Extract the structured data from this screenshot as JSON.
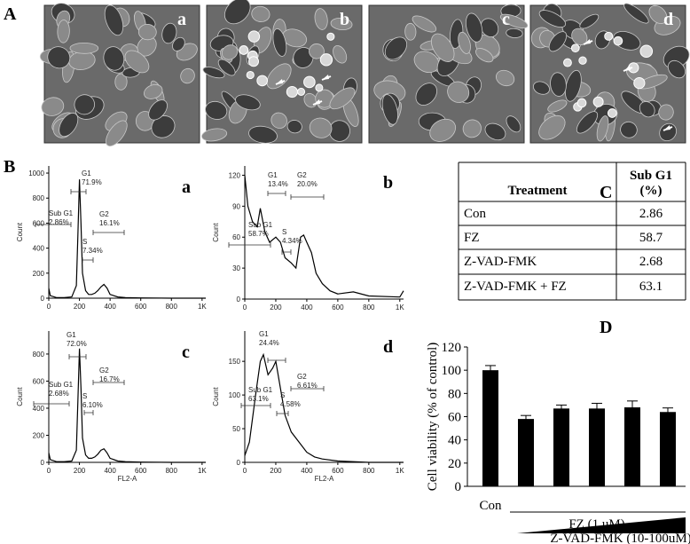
{
  "panel_a": {
    "label": "A",
    "image_labels": [
      "a",
      "b",
      "c",
      "d"
    ]
  },
  "panel_b": {
    "label": "B",
    "histograms": [
      {
        "label": "a",
        "ylabel": "Count",
        "xlim": [
          0,
          1024
        ],
        "xticks": [
          0,
          200,
          400,
          600,
          800,
          {
            "value": 1000,
            "label": "1K"
          }
        ],
        "ylim": [
          0,
          1057
        ],
        "yticks": [
          0,
          200,
          400,
          600,
          800,
          1000
        ],
        "x": [
          0,
          10,
          50,
          100,
          150,
          180,
          190,
          200,
          210,
          220,
          240,
          260,
          280,
          300,
          320,
          340,
          360,
          380,
          400,
          450,
          500,
          600,
          800,
          1000,
          1024
        ],
        "values": [
          80,
          20,
          5,
          5,
          10,
          100,
          500,
          950,
          600,
          200,
          60,
          30,
          30,
          40,
          60,
          90,
          110,
          80,
          30,
          10,
          5,
          2,
          0,
          0,
          0
        ],
        "gates": [
          {
            "name": "G1",
            "percent": "71.9%"
          },
          {
            "name": "Sub G1",
            "percent": "2.86%"
          },
          {
            "name": "G2",
            "percent": "16.1%"
          },
          {
            "name": "S",
            "percent": "7.34%"
          }
        ]
      },
      {
        "label": "b",
        "ylabel": "Count",
        "xlim": [
          0,
          1024
        ],
        "xticks": [
          0,
          200,
          400,
          600,
          800,
          {
            "value": 1000,
            "label": "1K"
          }
        ],
        "ylim": [
          0,
          129
        ],
        "yticks": [
          0,
          30,
          60,
          90,
          120
        ],
        "x": [
          0,
          20,
          50,
          80,
          100,
          130,
          160,
          200,
          230,
          260,
          300,
          330,
          360,
          380,
          400,
          430,
          460,
          500,
          550,
          600,
          700,
          800,
          1000,
          1024
        ],
        "values": [
          120,
          90,
          75,
          70,
          88,
          65,
          55,
          60,
          55,
          40,
          35,
          30,
          60,
          62,
          55,
          45,
          25,
          15,
          8,
          5,
          7,
          3,
          2,
          8
        ],
        "gates": [
          {
            "name": "G1",
            "percent": "13.4%"
          },
          {
            "name": "G2",
            "percent": "20.0%"
          },
          {
            "name": "Sub G1",
            "percent": "58.7%"
          },
          {
            "name": "S",
            "percent": "4.34%"
          }
        ]
      },
      {
        "label": "c",
        "ylabel": "Count",
        "xlabel": "FL2-A",
        "xlim": [
          0,
          1024
        ],
        "xticks": [
          0,
          200,
          400,
          600,
          800,
          {
            "value": 1000,
            "label": "1K"
          }
        ],
        "ylim": [
          0,
          970
        ],
        "yticks": [
          0,
          200,
          400,
          600,
          800
        ],
        "x": [
          0,
          10,
          50,
          100,
          150,
          180,
          190,
          200,
          210,
          220,
          240,
          260,
          280,
          300,
          320,
          340,
          360,
          380,
          400,
          450,
          500,
          600,
          800,
          1000,
          1024
        ],
        "values": [
          70,
          20,
          5,
          5,
          10,
          90,
          450,
          840,
          550,
          180,
          55,
          30,
          30,
          40,
          60,
          90,
          100,
          70,
          30,
          10,
          5,
          2,
          0,
          0,
          0
        ],
        "gates": [
          {
            "name": "G1",
            "percent": "72.0%"
          },
          {
            "name": "Sub G1",
            "percent": "2.68%"
          },
          {
            "name": "G2",
            "percent": "16.7%"
          },
          {
            "name": "S",
            "percent": "6.10%"
          }
        ]
      },
      {
        "label": "d",
        "ylabel": "Count",
        "xlabel": "FL2-A",
        "xlim": [
          0,
          1024
        ],
        "xticks": [
          0,
          200,
          400,
          600,
          800,
          {
            "value": 1000,
            "label": "1K"
          }
        ],
        "ylim": [
          0,
          195
        ],
        "yticks": [
          0,
          50,
          100,
          150
        ],
        "x": [
          0,
          30,
          70,
          100,
          120,
          150,
          180,
          200,
          230,
          260,
          300,
          350,
          400,
          450,
          500,
          600,
          800,
          1000,
          1024
        ],
        "values": [
          10,
          30,
          100,
          150,
          160,
          130,
          140,
          150,
          110,
          70,
          45,
          30,
          15,
          8,
          5,
          2,
          0,
          0,
          0
        ],
        "gates": [
          {
            "name": "G1",
            "percent": "24.4%"
          },
          {
            "name": "Sub G1",
            "percent": "63.1%"
          },
          {
            "name": "S",
            "percent": "4.58%"
          },
          {
            "name": "G2",
            "percent": "6.61%"
          }
        ]
      }
    ]
  },
  "panel_c": {
    "label": "C",
    "table": {
      "header": [
        "Treatment",
        [
          "Sub G1",
          "(%)"
        ]
      ],
      "rows": [
        [
          "Con",
          2.86
        ],
        [
          "FZ",
          58.7
        ],
        [
          "Z-VAD-FMK",
          2.68
        ],
        [
          "Z-VAD-FMK + FZ",
          63.1
        ]
      ]
    }
  },
  "panel_d": {
    "label": "D",
    "chart_data": {
      "type": "bar",
      "ylabel": "Cell viability (% of control)",
      "categories": [
        "Con",
        null,
        null,
        null,
        null,
        null
      ],
      "values": [
        100,
        58,
        67,
        67,
        68,
        64
      ],
      "errors": [
        4,
        3,
        3,
        4.5,
        5.5,
        3.5
      ],
      "color": "#000000",
      "ylim": [
        0,
        120
      ],
      "yticks": [
        0,
        20,
        40,
        60,
        80,
        100,
        120
      ],
      "group_label": "FZ (1 uM)",
      "gradient_label": "Z-VAD-FMK (10-100uM)"
    }
  }
}
